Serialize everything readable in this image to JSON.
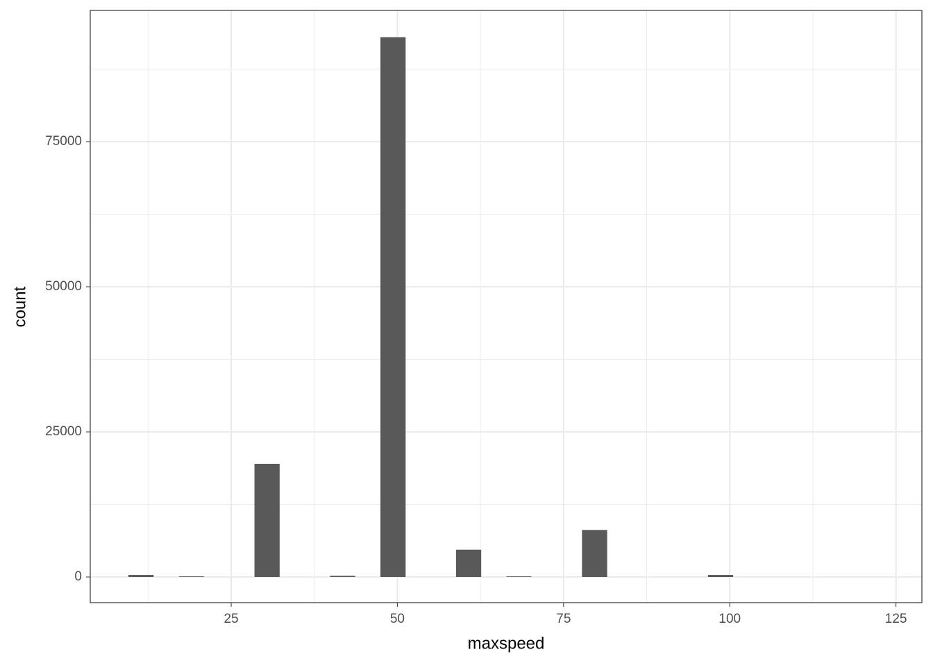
{
  "chart_data": {
    "type": "histogram",
    "xlabel": "maxspeed",
    "ylabel": "count",
    "bins": [
      9.55,
      13.34,
      17.13,
      20.92,
      24.71,
      28.5,
      32.29,
      36.08,
      39.87,
      43.66,
      47.45,
      51.24,
      55.03,
      58.82,
      62.61,
      66.4,
      70.19,
      73.98,
      77.77,
      81.56,
      85.35,
      89.14,
      92.93,
      96.72,
      100.51,
      104.3,
      108.09,
      111.88,
      115.67,
      119.46,
      123.25
    ],
    "counts": [
      350,
      0,
      100,
      0,
      0,
      19500,
      0,
      0,
      200,
      0,
      93000,
      0,
      0,
      4700,
      0,
      100,
      0,
      0,
      8100,
      0,
      0,
      0,
      0,
      350,
      0,
      0,
      0,
      0,
      0,
      0
    ],
    "color": "#595959",
    "xlim": [
      3.8,
      128.9
    ],
    "xticks": [
      25,
      50,
      75,
      100,
      125
    ],
    "ylim": [
      -4426,
      97608
    ],
    "yticks": [
      0,
      25000,
      50000,
      75000
    ],
    "grid": true
  }
}
